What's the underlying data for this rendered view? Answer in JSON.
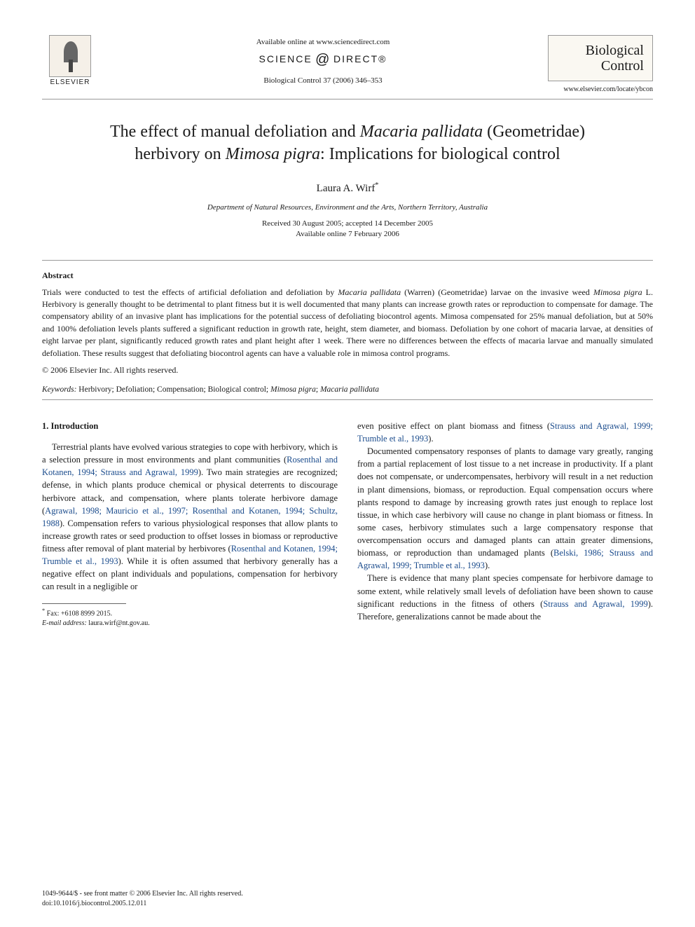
{
  "header": {
    "available_online": "Available online at www.sciencedirect.com",
    "sciencedirect_left": "SCIENCE",
    "sciencedirect_right": "DIRECT®",
    "journal_ref": "Biological Control 37 (2006) 346–353",
    "elsevier_label": "ELSEVIER",
    "journal_name_1": "Biological",
    "journal_name_2": "Control",
    "journal_url": "www.elsevier.com/locate/ybcon"
  },
  "title": {
    "line1_a": "The effect of manual defoliation and ",
    "line1_b": "Macaria pallidata",
    "line1_c": " (Geometridae)",
    "line2_a": "herbivory on ",
    "line2_b": "Mimosa pigra",
    "line2_c": ": Implications for biological control"
  },
  "author": "Laura A. Wirf",
  "author_mark": "*",
  "affiliation": "Department of Natural Resources, Environment and the Arts, Northern Territory, Australia",
  "dates": {
    "received": "Received 30 August 2005; accepted 14 December 2005",
    "online": "Available online 7 February 2006"
  },
  "abstract": {
    "heading": "Abstract",
    "body_1": "Trials were conducted to test the effects of artificial defoliation and defoliation by ",
    "body_2": "Macaria pallidata",
    "body_3": " (Warren) (Geometridae) larvae on the invasive weed ",
    "body_4": "Mimosa pigra",
    "body_5": " L. Herbivory is generally thought to be detrimental to plant fitness but it is well documented that many plants can increase growth rates or reproduction to compensate for damage. The compensatory ability of an invasive plant has implications for the potential success of defoliating biocontrol agents. Mimosa compensated for 25% manual defoliation, but at 50% and 100% defoliation levels plants suffered a significant reduction in growth rate, height, stem diameter, and biomass. Defoliation by one cohort of macaria larvae, at densities of eight larvae per plant, significantly reduced growth rates and plant height after 1 week. There were no differences between the effects of macaria larvae and manually simulated defoliation. These results suggest that defoliating biocontrol agents can have a valuable role in mimosa control programs.",
    "copyright": "© 2006 Elsevier Inc. All rights reserved."
  },
  "keywords": {
    "label": "Keywords:",
    "text_1": " Herbivory; Defoliation; Compensation; Biological control; ",
    "text_2": "Mimosa pigra",
    "text_3": "; ",
    "text_4": "Macaria pallidata"
  },
  "intro": {
    "heading": "1. Introduction",
    "col1_p1_a": "Terrestrial plants have evolved various strategies to cope with herbivory, which is a selection pressure in most environments and plant communities (",
    "col1_p1_ref1": "Rosenthal and Kotanen, 1994; Strauss and Agrawal, 1999",
    "col1_p1_b": "). Two main strategies are recognized; defense, in which plants produce chemical or physical deterrents to discourage herbivore attack, and compensation, where plants tolerate herbivore damage (",
    "col1_p1_ref2": "Agrawal, 1998; Mauricio et al., 1997; Rosenthal and Kotanen, 1994; Schultz, 1988",
    "col1_p1_c": "). Compensation refers to various physiological responses that allow plants to increase growth rates or seed production to offset losses in biomass or reproductive fitness after removal of plant material by herbivores (",
    "col1_p1_ref3": "Rosenthal and Kotanen, 1994; Trumble et al., 1993",
    "col1_p1_d": "). While it is often assumed that herbivory generally has a negative effect on plant individuals and populations, compensation for herbivory can result in a negligible or",
    "col2_p1_a": "even positive effect on plant biomass and fitness (",
    "col2_p1_ref1": "Strauss and Agrawal, 1999; Trumble et al., 1993",
    "col2_p1_b": ").",
    "col2_p2_a": "Documented compensatory responses of plants to damage vary greatly, ranging from a partial replacement of lost tissue to a net increase in productivity. If a plant does not compensate, or undercompensates, herbivory will result in a net reduction in plant dimensions, biomass, or reproduction. Equal compensation occurs where plants respond to damage by increasing growth rates just enough to replace lost tissue, in which case herbivory will cause no change in plant biomass or fitness. In some cases, herbivory stimulates such a large compensatory response that overcompensation occurs and damaged plants can attain greater dimensions, biomass, or reproduction than undamaged plants (",
    "col2_p2_ref1": "Belski, 1986; Strauss and Agrawal, 1999; Trumble et al., 1993",
    "col2_p2_b": ").",
    "col2_p3_a": "There is evidence that many plant species compensate for herbivore damage to some extent, while relatively small levels of defoliation have been shown to cause significant reductions in the fitness of others (",
    "col2_p3_ref1": "Strauss and Agrawal, 1999",
    "col2_p3_b": "). Therefore, generalizations cannot be made about the"
  },
  "footnote": {
    "fax_label": "Fax:",
    "fax": " +6108 8999 2015.",
    "email_label": "E-mail address:",
    "email": " laura.wirf@nt.gov.au."
  },
  "footer": {
    "line1": "1049-9644/$ - see front matter © 2006 Elsevier Inc. All rights reserved.",
    "line2": "doi:10.1016/j.biocontrol.2005.12.011"
  },
  "colors": {
    "text": "#1a1a1a",
    "ref_link": "#1a4b8c",
    "rule": "#999999",
    "background": "#ffffff"
  },
  "typography": {
    "body_font": "Georgia, Times New Roman, serif",
    "title_size_pt": 18,
    "author_size_pt": 11,
    "abstract_size_pt": 9,
    "body_size_pt": 9.5
  }
}
